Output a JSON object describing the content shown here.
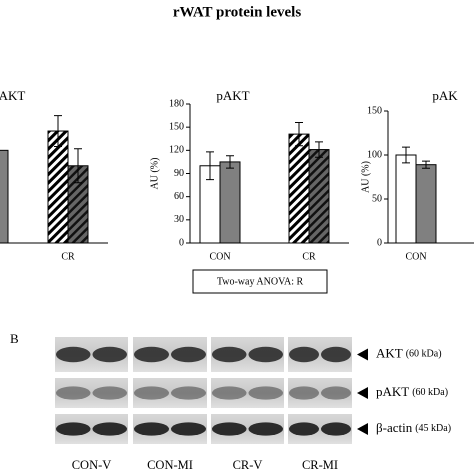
{
  "title": "rWAT protein levels",
  "chart_data": [
    {
      "type": "bar",
      "title": "AKT",
      "categories": [
        null,
        "CR"
      ],
      "ylim": [
        0,
        180
      ],
      "series": [
        {
          "fills": [
            "white",
            "hatch-light"
          ],
          "values": [
            null,
            145
          ],
          "errors": [
            null,
            20
          ]
        },
        {
          "fills": [
            "gray",
            "hatch-dark"
          ],
          "values": [
            120,
            100
          ],
          "errors": [
            null,
            22
          ]
        }
      ]
    },
    {
      "type": "bar",
      "title": "pAKT",
      "ylabel": "AU (%)",
      "categories": [
        "CON",
        "CR"
      ],
      "ylim": [
        0,
        180
      ],
      "yticks": [
        0,
        30,
        60,
        90,
        120,
        150,
        180
      ],
      "series": [
        {
          "fills": [
            "white",
            "hatch-light"
          ],
          "values": [
            100,
            141
          ],
          "errors": [
            18,
            15
          ]
        },
        {
          "fills": [
            "gray",
            "hatch-dark"
          ],
          "values": [
            105,
            121
          ],
          "errors": [
            8,
            10
          ]
        }
      ],
      "note": "Two-way ANOVA: R"
    },
    {
      "type": "bar",
      "title": "pAK",
      "ylabel": "AU (%)",
      "categories": [
        "CON",
        null
      ],
      "ylim": [
        0,
        150
      ],
      "yticks": [
        0,
        50,
        100,
        150
      ],
      "series": [
        {
          "fills": [
            "white",
            "hatch-light"
          ],
          "values": [
            100,
            null
          ],
          "errors": [
            9,
            null
          ]
        },
        {
          "fills": [
            "gray",
            "hatch-dark"
          ],
          "values": [
            89,
            null
          ],
          "errors": [
            4,
            null
          ]
        }
      ]
    }
  ],
  "panel_b": {
    "label": "B",
    "proteins": [
      {
        "name": "AKT",
        "size": "(60 kDa)"
      },
      {
        "name": "pAKT",
        "size": "(60 kDa)"
      },
      {
        "name": "β-actin",
        "size": "(45 kDa)"
      }
    ],
    "lanes": [
      "CON-V",
      "CON-MI",
      "CR-V",
      "CR-MI"
    ]
  }
}
